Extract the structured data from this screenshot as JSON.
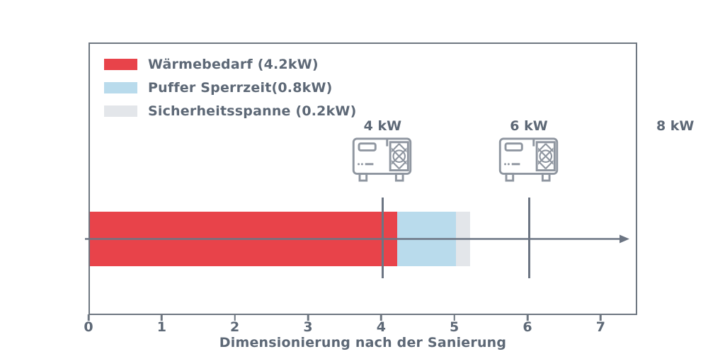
{
  "colors": {
    "text": "#5d6876",
    "axis": "#6e7781",
    "line": "#6c7583",
    "icon": "#8f96a0",
    "heat_demand_red": "#e8434a",
    "buffer_blue": "#b9dbec",
    "safety_gray": "#e3e6ea",
    "background": "#ffffff"
  },
  "chart_data": {
    "type": "bar",
    "orientation": "horizontal",
    "title": "",
    "xlabel": "Dimensionierung nach der Sanierung",
    "ylabel": "",
    "xlim": [
      0,
      7.5
    ],
    "xticks": [
      "0",
      "1",
      "2",
      "3",
      "4",
      "5",
      "6",
      "7"
    ],
    "grid": false,
    "legend_position": "upper-left",
    "segments": [
      {
        "id": "waermebedarf",
        "label": "Wärmebedarf (4.2kW)",
        "value": 4.2,
        "color": "#e8434a"
      },
      {
        "id": "puffer-sperrzeit",
        "label": "Puffer Sperrzeit(0.8kW)",
        "value": 0.8,
        "color": "#b9dbec"
      },
      {
        "id": "sicherheitsspanne",
        "label": "Sicherheitsspanne (0.2kW)",
        "value": 0.2,
        "color": "#e3e6ea"
      }
    ],
    "markers": [
      {
        "id": "hp-4kw",
        "label": "4 kW",
        "x": 4,
        "line": true,
        "icon": "heat-pump-icon"
      },
      {
        "id": "hp-6kw",
        "label": "6 kW",
        "x": 6,
        "line": true,
        "icon": "heat-pump-icon"
      },
      {
        "id": "hp-8kw",
        "label": "8 kW",
        "x": 8,
        "line": false,
        "icon": null
      }
    ]
  }
}
